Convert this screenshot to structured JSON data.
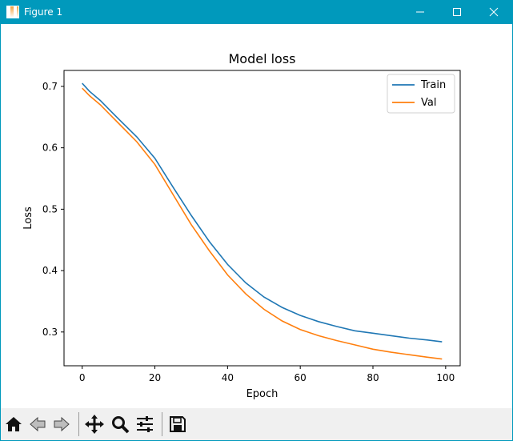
{
  "window": {
    "title": "Figure 1",
    "controls": [
      "minimize-icon",
      "maximize-icon",
      "close-icon"
    ]
  },
  "toolbar": {
    "buttons": [
      "home-icon",
      "back-icon",
      "forward-icon",
      "pan-icon",
      "zoom-icon",
      "configure-subplots-icon",
      "save-icon"
    ]
  },
  "colors": {
    "titlebar": "#0099bc",
    "train": "#1f77b4",
    "val": "#ff7f0e"
  },
  "chart_data": {
    "type": "line",
    "title": "Model loss",
    "xlabel": "Epoch",
    "ylabel": "Loss",
    "xlim": [
      -5,
      104
    ],
    "ylim": [
      0.245,
      0.726
    ],
    "xticks": [
      0,
      20,
      40,
      60,
      80,
      100
    ],
    "yticks": [
      0.3,
      0.4,
      0.5,
      0.6,
      0.7
    ],
    "xtick_labels": [
      "0",
      "20",
      "40",
      "60",
      "80",
      "100"
    ],
    "ytick_labels": [
      "0.3",
      "0.4",
      "0.5",
      "0.6",
      "0.7"
    ],
    "legend": {
      "placement": "top-right",
      "entries": [
        "Train",
        "Val"
      ]
    },
    "grid": false,
    "series": [
      {
        "name": "Train",
        "color": "#1f77b4",
        "x": [
          0,
          2,
          5,
          8,
          10,
          15,
          20,
          25,
          30,
          35,
          40,
          45,
          50,
          55,
          60,
          65,
          70,
          75,
          80,
          85,
          90,
          95,
          99
        ],
        "y": [
          0.705,
          0.692,
          0.677,
          0.659,
          0.647,
          0.618,
          0.583,
          0.536,
          0.49,
          0.447,
          0.41,
          0.38,
          0.357,
          0.34,
          0.327,
          0.317,
          0.309,
          0.302,
          0.298,
          0.294,
          0.29,
          0.287,
          0.284
        ]
      },
      {
        "name": "Val",
        "color": "#ff7f0e",
        "x": [
          0,
          2,
          5,
          8,
          10,
          15,
          20,
          25,
          30,
          35,
          40,
          45,
          50,
          55,
          60,
          65,
          70,
          75,
          80,
          85,
          90,
          95,
          99
        ],
        "y": [
          0.697,
          0.685,
          0.67,
          0.652,
          0.64,
          0.61,
          0.573,
          0.524,
          0.475,
          0.432,
          0.393,
          0.362,
          0.337,
          0.318,
          0.304,
          0.294,
          0.286,
          0.279,
          0.272,
          0.267,
          0.263,
          0.259,
          0.256
        ]
      }
    ]
  }
}
